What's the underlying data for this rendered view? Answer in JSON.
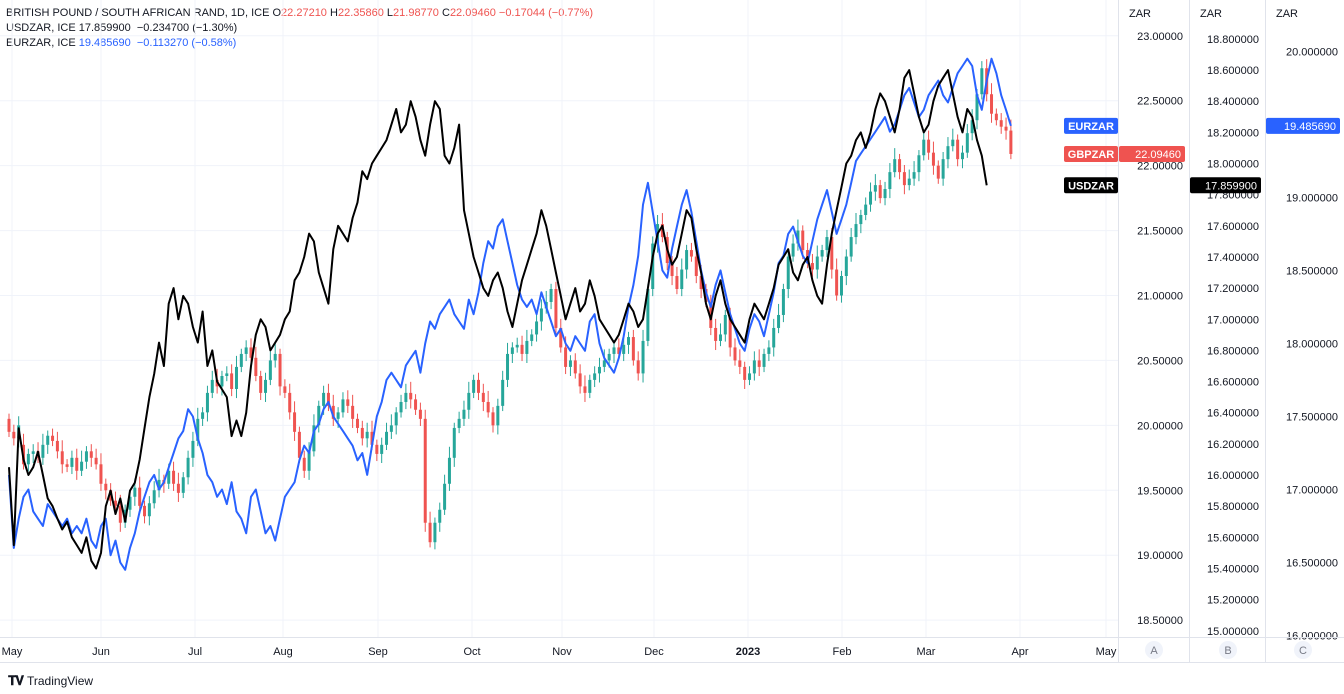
{
  "legend": {
    "main": {
      "name": "BRITISH POUND / SOUTH AFRICAN RAND, 1D, ICE",
      "o_label": "O",
      "o": "22.27210",
      "h_label": "H",
      "h": "22.35860",
      "l_label": "L",
      "l": "21.98770",
      "c_label": "C",
      "c": "22.09460",
      "chg": "−0.17044 (−0.77%)"
    },
    "usd": {
      "name": "USDZAR, ICE",
      "values": "17.859900  −0.234700 (−1.30%)"
    },
    "eur": {
      "name": "EURZAR, ICE",
      "values": "19.485690  −0.113270 (−0.58%)"
    }
  },
  "footer": {
    "brand": "TradingView",
    "logo_icon": "tradingview-logo-icon"
  },
  "colors": {
    "up": "#26a69a",
    "down": "#ef5350",
    "usd": "#000000",
    "eur": "#2962ff",
    "grid": "#f0f3fa",
    "text": "#131722"
  },
  "chart_data": {
    "type": "line",
    "x_labels": [
      "May",
      "Jun",
      "Jul",
      "Aug",
      "Sep",
      "Oct",
      "Nov",
      "Dec",
      "2023",
      "Feb",
      "Mar",
      "Apr",
      "May"
    ],
    "scales": [
      {
        "id": "A",
        "unit": "ZAR",
        "ticks": [
          "23.00000",
          "22.50000",
          "22.00000",
          "21.50000",
          "21.00000",
          "20.50000",
          "20.00000",
          "19.50000",
          "19.00000",
          "18.50000"
        ],
        "ylim": [
          18.37,
          23.06
        ]
      },
      {
        "id": "B",
        "unit": "ZAR",
        "ticks": [
          "18.800000",
          "18.600000",
          "18.400000",
          "18.200000",
          "18.000000",
          "17.800000",
          "17.600000",
          "17.400000",
          "17.200000",
          "17.000000",
          "16.800000",
          "16.600000",
          "16.400000",
          "16.200000",
          "16.000000",
          "15.800000",
          "15.600000",
          "15.400000",
          "15.200000",
          "15.000000"
        ],
        "ylim": [
          14.96,
          18.87
        ]
      },
      {
        "id": "C",
        "unit": "ZAR",
        "ticks": [
          "20.000000",
          "19.500000",
          "19.000000",
          "18.500000",
          "18.000000",
          "17.500000",
          "17.000000",
          "16.500000",
          "16.000000"
        ],
        "ylim": [
          15.99,
          20.16
        ]
      }
    ],
    "series": [
      {
        "name": "GBPZAR",
        "kind": "candlestick",
        "scale": "A",
        "last_label": "22.09460",
        "close": [
          19.95,
          19.9,
          20.0,
          19.7,
          19.78,
          19.8,
          19.75,
          19.85,
          19.92,
          19.88,
          19.8,
          19.7,
          19.68,
          19.75,
          19.65,
          19.72,
          19.8,
          19.75,
          19.7,
          19.55,
          19.5,
          19.42,
          19.38,
          19.25,
          19.35,
          19.45,
          19.52,
          19.38,
          19.3,
          19.4,
          19.5,
          19.58,
          19.55,
          19.65,
          19.55,
          19.48,
          19.6,
          19.75,
          19.88,
          20.05,
          20.1,
          20.25,
          20.35,
          20.3,
          20.38,
          20.4,
          20.28,
          20.45,
          20.55,
          20.6,
          20.52,
          20.38,
          20.25,
          20.35,
          20.5,
          20.55,
          20.3,
          20.25,
          20.1,
          19.95,
          19.75,
          19.65,
          19.8,
          20.0,
          20.15,
          20.25,
          20.15,
          20.05,
          20.1,
          20.2,
          20.15,
          20.05,
          19.98,
          19.9,
          19.95,
          19.85,
          19.78,
          19.85,
          19.95,
          20.0,
          20.1,
          20.18,
          20.25,
          20.2,
          20.12,
          20.05,
          19.25,
          19.1,
          19.25,
          19.35,
          19.55,
          19.75,
          19.98,
          20.05,
          20.12,
          20.25,
          20.35,
          20.25,
          20.18,
          20.1,
          20.0,
          20.15,
          20.35,
          20.55,
          20.6,
          20.62,
          20.55,
          20.65,
          20.7,
          20.8,
          20.9,
          20.95,
          21.05,
          20.75,
          20.6,
          20.45,
          20.5,
          20.4,
          20.3,
          20.25,
          20.35,
          20.4,
          20.45,
          20.5,
          20.55,
          20.6,
          20.55,
          20.62,
          20.68,
          20.5,
          20.4,
          20.65,
          21.05,
          21.4,
          21.55,
          21.45,
          21.25,
          21.15,
          21.05,
          21.2,
          21.35,
          21.3,
          21.15,
          21.05,
          20.95,
          20.75,
          20.65,
          20.7,
          20.85,
          20.6,
          20.5,
          20.45,
          20.35,
          20.4,
          20.5,
          20.45,
          20.55,
          20.6,
          20.75,
          20.85,
          21.05,
          21.3,
          21.4,
          21.5,
          21.35,
          21.25,
          21.2,
          21.3,
          21.35,
          21.45,
          21.2,
          21.0,
          21.15,
          21.3,
          21.45,
          21.55,
          21.62,
          21.7,
          21.8,
          21.85,
          21.75,
          21.82,
          21.95,
          22.05,
          21.95,
          21.85,
          21.9,
          21.95,
          22.08,
          22.2,
          22.1,
          22.0,
          21.9,
          22.05,
          22.15,
          22.2,
          22.05,
          22.1,
          22.25,
          22.35,
          22.55,
          22.75,
          22.55,
          22.4,
          22.35,
          22.3,
          22.27,
          22.09
        ],
        "open": [
          20.05,
          19.95,
          19.9,
          19.85,
          19.7,
          19.78,
          19.8,
          19.75,
          19.85,
          19.92,
          19.88,
          19.8,
          19.7,
          19.68,
          19.75,
          19.65,
          19.72,
          19.8,
          19.75,
          19.7,
          19.55,
          19.5,
          19.42,
          19.38,
          19.25,
          19.35,
          19.45,
          19.52,
          19.38,
          19.3,
          19.4,
          19.5,
          19.58,
          19.55,
          19.65,
          19.55,
          19.48,
          19.6,
          19.75,
          19.88,
          20.05,
          20.1,
          20.25,
          20.35,
          20.3,
          20.38,
          20.4,
          20.28,
          20.45,
          20.55,
          20.6,
          20.52,
          20.38,
          20.25,
          20.35,
          20.5,
          20.55,
          20.3,
          20.25,
          20.1,
          19.95,
          19.75,
          19.65,
          19.8,
          20.0,
          20.15,
          20.25,
          20.15,
          20.05,
          20.1,
          20.2,
          20.15,
          20.05,
          19.98,
          19.9,
          19.95,
          19.85,
          19.78,
          19.85,
          19.95,
          20.0,
          20.1,
          20.18,
          20.25,
          20.2,
          20.12,
          20.05,
          19.25,
          19.1,
          19.25,
          19.35,
          19.55,
          19.75,
          19.98,
          20.05,
          20.12,
          20.25,
          20.35,
          20.25,
          20.18,
          20.1,
          20.0,
          20.15,
          20.35,
          20.55,
          20.6,
          20.62,
          20.55,
          20.65,
          20.7,
          20.8,
          20.9,
          20.95,
          21.05,
          20.75,
          20.6,
          20.45,
          20.5,
          20.4,
          20.3,
          20.25,
          20.35,
          20.4,
          20.45,
          20.5,
          20.55,
          20.6,
          20.55,
          20.62,
          20.68,
          20.5,
          20.4,
          20.65,
          21.05,
          21.4,
          21.55,
          21.45,
          21.25,
          21.15,
          21.05,
          21.2,
          21.35,
          21.3,
          21.15,
          21.05,
          20.95,
          20.75,
          20.65,
          20.7,
          20.85,
          20.6,
          20.5,
          20.45,
          20.35,
          20.4,
          20.5,
          20.45,
          20.55,
          20.6,
          20.75,
          20.85,
          21.05,
          21.3,
          21.4,
          21.5,
          21.35,
          21.25,
          21.2,
          21.3,
          21.35,
          21.45,
          21.2,
          21.0,
          21.15,
          21.3,
          21.45,
          21.55,
          21.62,
          21.7,
          21.8,
          21.85,
          21.75,
          21.82,
          21.95,
          22.05,
          21.95,
          21.85,
          21.9,
          21.95,
          22.08,
          22.2,
          22.1,
          22.0,
          21.9,
          22.05,
          22.15,
          22.2,
          22.05,
          22.1,
          22.25,
          22.35,
          22.55,
          22.75,
          22.55,
          22.4,
          22.35,
          22.3,
          22.27
        ]
      },
      {
        "name": "USDZAR",
        "kind": "line",
        "scale": "B",
        "last_label": "17.859900",
        "values": [
          16.05,
          15.55,
          16.3,
          16.1,
          16.0,
          16.05,
          16.15,
          16.0,
          15.85,
          15.8,
          15.72,
          15.65,
          15.7,
          15.6,
          15.55,
          15.5,
          15.6,
          15.45,
          15.4,
          15.5,
          15.8,
          15.9,
          15.75,
          15.85,
          15.7,
          15.9,
          15.95,
          16.1,
          16.3,
          16.5,
          16.65,
          16.85,
          16.7,
          17.1,
          17.2,
          17.0,
          17.15,
          17.1,
          16.95,
          16.85,
          17.05,
          16.7,
          16.8,
          16.6,
          16.55,
          16.5,
          16.25,
          16.35,
          16.25,
          16.4,
          16.7,
          16.9,
          17.0,
          16.95,
          16.8,
          16.85,
          16.9,
          17.0,
          17.05,
          17.25,
          17.3,
          17.4,
          17.55,
          17.5,
          17.3,
          17.2,
          17.1,
          17.45,
          17.6,
          17.55,
          17.5,
          17.65,
          17.75,
          17.95,
          17.9,
          18.0,
          18.05,
          18.1,
          18.15,
          18.25,
          18.35,
          18.2,
          18.25,
          18.4,
          18.3,
          18.15,
          18.05,
          18.25,
          18.4,
          18.35,
          18.05,
          18.0,
          18.1,
          18.25,
          17.7,
          17.55,
          17.4,
          17.3,
          17.2,
          17.15,
          17.25,
          17.3,
          17.2,
          17.05,
          16.95,
          17.1,
          17.25,
          17.35,
          17.45,
          17.55,
          17.7,
          17.6,
          17.45,
          17.3,
          17.15,
          17.0,
          17.1,
          17.2,
          17.05,
          17.1,
          17.25,
          17.15,
          17.0,
          16.95,
          16.9,
          16.85,
          16.9,
          17.0,
          17.1,
          17.05,
          16.95,
          17.0,
          17.2,
          17.4,
          17.55,
          17.6,
          17.45,
          17.35,
          17.4,
          17.55,
          17.7,
          17.65,
          17.45,
          17.3,
          17.1,
          17.0,
          17.15,
          17.25,
          17.1,
          17.0,
          16.95,
          16.9,
          16.85,
          17.0,
          17.1,
          17.05,
          17.0,
          17.1,
          17.2,
          17.35,
          17.4,
          17.45,
          17.3,
          17.25,
          17.35,
          17.4,
          17.25,
          17.15,
          17.1,
          17.35,
          17.55,
          17.7,
          17.85,
          18.0,
          18.05,
          18.15,
          18.2,
          18.1,
          18.2,
          18.35,
          18.45,
          18.4,
          18.3,
          18.2,
          18.35,
          18.55,
          18.6,
          18.45,
          18.3,
          18.2,
          18.25,
          18.4,
          18.5,
          18.55,
          18.6,
          18.45,
          18.3,
          18.2,
          18.35,
          18.3,
          18.15,
          18.05,
          17.86
        ]
      },
      {
        "name": "EURZAR",
        "kind": "line",
        "scale": "C",
        "last_label": "19.485690",
        "values": [
          17.1,
          16.6,
          16.8,
          16.95,
          17.0,
          16.85,
          16.8,
          16.75,
          16.9,
          16.85,
          16.8,
          16.75,
          16.8,
          16.7,
          16.75,
          16.7,
          16.8,
          16.65,
          16.6,
          16.75,
          16.8,
          16.55,
          16.65,
          16.5,
          16.45,
          16.6,
          16.7,
          16.85,
          16.95,
          17.05,
          17.1,
          17.0,
          17.05,
          17.15,
          17.25,
          17.35,
          17.4,
          17.55,
          17.5,
          17.35,
          17.25,
          17.1,
          17.05,
          16.95,
          17.0,
          16.9,
          17.05,
          16.85,
          16.8,
          16.7,
          16.95,
          17.0,
          16.85,
          16.7,
          16.75,
          16.65,
          16.8,
          16.95,
          17.0,
          17.05,
          17.2,
          17.3,
          17.25,
          17.4,
          17.45,
          17.55,
          17.6,
          17.5,
          17.45,
          17.4,
          17.35,
          17.3,
          17.2,
          17.25,
          17.1,
          17.3,
          17.5,
          17.6,
          17.75,
          17.8,
          17.75,
          17.7,
          17.85,
          17.9,
          17.95,
          17.8,
          18.0,
          18.15,
          18.1,
          18.2,
          18.25,
          18.3,
          18.2,
          18.15,
          18.1,
          18.3,
          18.2,
          18.35,
          18.55,
          18.7,
          18.65,
          18.8,
          18.85,
          18.7,
          18.55,
          18.4,
          18.3,
          18.25,
          18.3,
          18.2,
          18.35,
          18.25,
          18.15,
          18.05,
          18.1,
          18.0,
          17.95,
          18.05,
          18.0,
          17.95,
          18.15,
          18.2,
          18.0,
          17.9,
          17.85,
          17.8,
          17.9,
          18.05,
          18.25,
          18.4,
          18.6,
          18.95,
          19.1,
          18.9,
          18.7,
          18.5,
          18.45,
          18.65,
          18.8,
          18.95,
          19.05,
          18.9,
          18.7,
          18.5,
          18.35,
          18.25,
          18.4,
          18.5,
          18.35,
          18.2,
          18.1,
          18.0,
          17.95,
          18.1,
          18.2,
          18.15,
          18.05,
          18.2,
          18.35,
          18.55,
          18.6,
          18.75,
          18.8,
          18.7,
          18.6,
          18.55,
          18.7,
          18.85,
          18.95,
          19.05,
          18.9,
          18.75,
          18.85,
          18.95,
          19.1,
          19.25,
          19.3,
          19.35,
          19.4,
          19.45,
          19.5,
          19.55,
          19.45,
          19.5,
          19.6,
          19.7,
          19.75,
          19.65,
          19.55,
          19.6,
          19.7,
          19.75,
          19.8,
          19.7,
          19.65,
          19.75,
          19.85,
          19.9,
          19.95,
          19.9,
          19.7,
          19.6,
          19.8,
          19.95,
          19.85,
          19.7,
          19.6,
          19.49
        ]
      }
    ]
  }
}
